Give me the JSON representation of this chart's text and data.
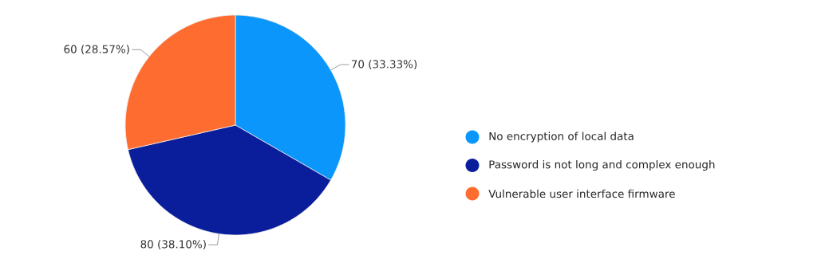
{
  "chart_data": {
    "type": "pie",
    "categories": [
      "No encryption of local data",
      "Password is not long and complex enough",
      "Vulnerable user interface firmware"
    ],
    "values": [
      70,
      80,
      60
    ],
    "colors": [
      "#0a96fa",
      "#0a1e9b",
      "#fe6c2f"
    ],
    "value_labels": [
      "70 (33.33%)",
      "80 (38.10%)",
      "60 (28.57%)"
    ],
    "legend": "right"
  }
}
